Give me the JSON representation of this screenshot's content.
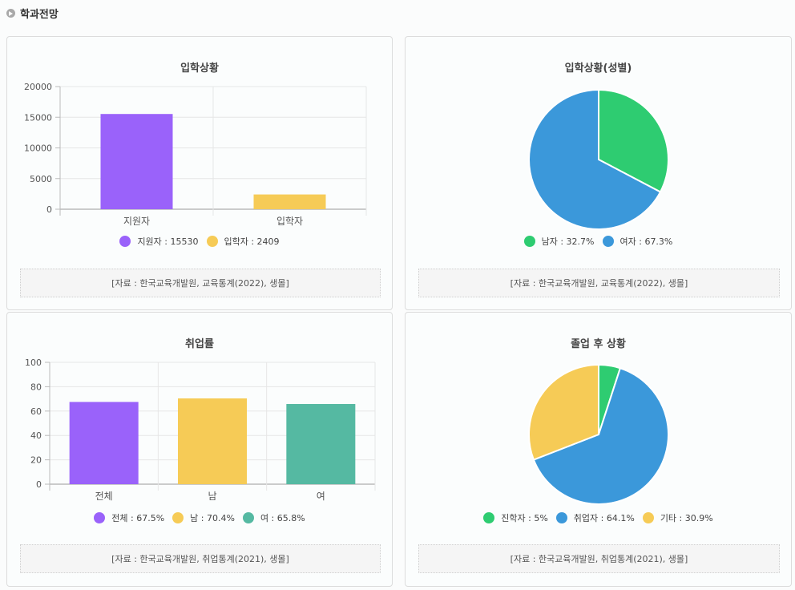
{
  "header": {
    "title": "학과전망"
  },
  "chart_data": [
    {
      "type": "bar",
      "title": "입학상황",
      "categories": [
        "지원자",
        "입학자"
      ],
      "values": [
        15530,
        2409
      ],
      "colors": [
        "#9a62fa",
        "#f6cb56"
      ],
      "ylim": [
        0,
        20000
      ],
      "yticks": [
        0,
        5000,
        10000,
        15000,
        20000
      ],
      "legend": [
        "지원자 : 15530",
        "입학자 : 2409"
      ],
      "source": "[자료 : 한국교육개발원, 교육통계(2022), 생몰]"
    },
    {
      "type": "pie",
      "title": "입학상황(성별)",
      "labels": [
        "남자",
        "여자"
      ],
      "values": [
        32.7,
        67.3
      ],
      "colors": [
        "#2ecc71",
        "#3b98da"
      ],
      "legend": [
        "남자 : 32.7%",
        "여자 : 67.3%"
      ],
      "source": "[자료 : 한국교육개발원, 교육통계(2022), 생몰]"
    },
    {
      "type": "bar",
      "title": "취업률",
      "categories": [
        "전체",
        "남",
        "여"
      ],
      "values": [
        67.5,
        70.4,
        65.8
      ],
      "colors": [
        "#9a62fa",
        "#f6cb56",
        "#55b9a2"
      ],
      "ylim": [
        0,
        100
      ],
      "yticks": [
        0,
        20,
        40,
        60,
        80,
        100
      ],
      "legend": [
        "전체 : 67.5%",
        "남 : 70.4%",
        "여 : 65.8%"
      ],
      "source": "[자료 : 한국교육개발원, 취업통계(2021), 생몰]"
    },
    {
      "type": "pie",
      "title": "졸업 후 상황",
      "labels": [
        "진학자",
        "취업자",
        "기타"
      ],
      "values": [
        5,
        64.1,
        30.9
      ],
      "colors": [
        "#2ecc71",
        "#3b98da",
        "#f6cb56"
      ],
      "legend": [
        "진학자 : 5%",
        "취업자 : 64.1%",
        "기타 : 30.9%"
      ],
      "source": "[자료 : 한국교육개발원, 취업통계(2021), 생몰]"
    }
  ]
}
